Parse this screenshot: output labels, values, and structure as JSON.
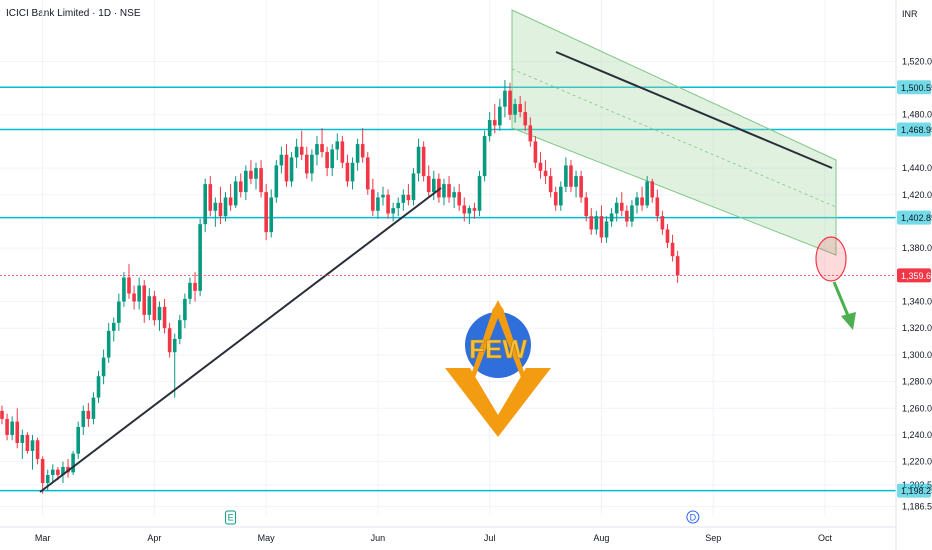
{
  "header": {
    "title": "ICICI Bank Limited · 1D · NSE",
    "currency": "INR"
  },
  "chart_data": {
    "type": "candlestick",
    "symbol": "ICICI Bank Limited",
    "interval": "1D",
    "exchange": "NSE",
    "currency": "INR",
    "ylim": [
      1180,
      1545
    ],
    "y_ticks": [
      "1,520.00",
      "1,480.00",
      "1,440.00",
      "1,420.00",
      "1,380.00",
      "1,340.00",
      "1,320.00",
      "1,300.00",
      "1,280.00",
      "1,260.00",
      "1,240.00",
      "1,220.00",
      "1,202.50",
      "1,186.50"
    ],
    "y_tick_values": [
      1520,
      1480,
      1440,
      1420,
      1380,
      1340,
      1320,
      1300,
      1280,
      1260,
      1240,
      1220,
      1202.5,
      1186.5
    ],
    "x_labels": [
      "Mar",
      "Apr",
      "May",
      "Jun",
      "Jul",
      "Aug",
      "Sep",
      "Oct"
    ],
    "x_label_index": [
      8,
      30,
      52,
      74,
      96,
      118,
      140,
      162
    ],
    "horizontal_levels": [
      {
        "value": 1500.55,
        "label": "1,500.55"
      },
      {
        "value": 1468.95,
        "label": "1,468.95"
      },
      {
        "value": 1402.85,
        "label": "1,402.85"
      },
      {
        "value": 1198.25,
        "label": "1,198.25"
      }
    ],
    "last_price": {
      "value": 1359.6,
      "label": "1,359.60"
    },
    "events": [
      {
        "index": 45,
        "label": "E",
        "color": "#089981"
      },
      {
        "index": 136,
        "label": "D",
        "color": "#2962ff"
      }
    ],
    "candles": [
      [
        1258,
        1262,
        1248,
        1252
      ],
      [
        1252,
        1256,
        1236,
        1240
      ],
      [
        1240,
        1254,
        1236,
        1250
      ],
      [
        1250,
        1260,
        1230,
        1234
      ],
      [
        1234,
        1244,
        1222,
        1240
      ],
      [
        1240,
        1242,
        1226,
        1228
      ],
      [
        1228,
        1240,
        1214,
        1236
      ],
      [
        1236,
        1238,
        1218,
        1222
      ],
      [
        1222,
        1224,
        1196,
        1204
      ],
      [
        1204,
        1214,
        1198,
        1210
      ],
      [
        1210,
        1218,
        1204,
        1214
      ],
      [
        1214,
        1216,
        1206,
        1210
      ],
      [
        1210,
        1220,
        1204,
        1216
      ],
      [
        1216,
        1222,
        1208,
        1212
      ],
      [
        1212,
        1228,
        1210,
        1226
      ],
      [
        1226,
        1250,
        1222,
        1246
      ],
      [
        1246,
        1262,
        1240,
        1258
      ],
      [
        1258,
        1264,
        1246,
        1252
      ],
      [
        1252,
        1272,
        1248,
        1268
      ],
      [
        1268,
        1288,
        1264,
        1284
      ],
      [
        1284,
        1304,
        1278,
        1298
      ],
      [
        1298,
        1324,
        1294,
        1318
      ],
      [
        1318,
        1328,
        1310,
        1324
      ],
      [
        1324,
        1346,
        1318,
        1340
      ],
      [
        1340,
        1362,
        1336,
        1358
      ],
      [
        1358,
        1368,
        1342,
        1346
      ],
      [
        1346,
        1352,
        1334,
        1340
      ],
      [
        1340,
        1358,
        1334,
        1352
      ],
      [
        1352,
        1356,
        1324,
        1330
      ],
      [
        1330,
        1350,
        1326,
        1344
      ],
      [
        1344,
        1348,
        1322,
        1326
      ],
      [
        1326,
        1340,
        1318,
        1336
      ],
      [
        1336,
        1342,
        1316,
        1320
      ],
      [
        1320,
        1324,
        1298,
        1302
      ],
      [
        1302,
        1316,
        1268,
        1312
      ],
      [
        1312,
        1330,
        1308,
        1326
      ],
      [
        1326,
        1346,
        1320,
        1342
      ],
      [
        1342,
        1358,
        1338,
        1354
      ],
      [
        1354,
        1362,
        1340,
        1348
      ],
      [
        1348,
        1402,
        1344,
        1398
      ],
      [
        1398,
        1432,
        1392,
        1428
      ],
      [
        1428,
        1434,
        1404,
        1408
      ],
      [
        1408,
        1418,
        1396,
        1414
      ],
      [
        1414,
        1426,
        1398,
        1404
      ],
      [
        1404,
        1422,
        1400,
        1418
      ],
      [
        1418,
        1428,
        1408,
        1412
      ],
      [
        1412,
        1434,
        1410,
        1430
      ],
      [
        1430,
        1436,
        1418,
        1422
      ],
      [
        1422,
        1442,
        1416,
        1438
      ],
      [
        1438,
        1446,
        1428,
        1432
      ],
      [
        1432,
        1444,
        1424,
        1440
      ],
      [
        1440,
        1446,
        1418,
        1422
      ],
      [
        1422,
        1428,
        1386,
        1392
      ],
      [
        1392,
        1424,
        1388,
        1418
      ],
      [
        1418,
        1446,
        1414,
        1442
      ],
      [
        1442,
        1456,
        1436,
        1450
      ],
      [
        1450,
        1458,
        1426,
        1430
      ],
      [
        1430,
        1452,
        1426,
        1448
      ],
      [
        1448,
        1462,
        1440,
        1456
      ],
      [
        1456,
        1468,
        1446,
        1450
      ],
      [
        1450,
        1456,
        1432,
        1436
      ],
      [
        1436,
        1454,
        1430,
        1450
      ],
      [
        1450,
        1464,
        1442,
        1458
      ],
      [
        1458,
        1470,
        1448,
        1452
      ],
      [
        1452,
        1456,
        1434,
        1440
      ],
      [
        1440,
        1458,
        1434,
        1454
      ],
      [
        1454,
        1466,
        1446,
        1460
      ],
      [
        1460,
        1464,
        1440,
        1444
      ],
      [
        1444,
        1450,
        1426,
        1430
      ],
      [
        1430,
        1448,
        1424,
        1444
      ],
      [
        1444,
        1462,
        1438,
        1458
      ],
      [
        1458,
        1470,
        1444,
        1448
      ],
      [
        1448,
        1452,
        1420,
        1424
      ],
      [
        1424,
        1432,
        1404,
        1408
      ],
      [
        1408,
        1422,
        1402,
        1418
      ],
      [
        1418,
        1426,
        1412,
        1420
      ],
      [
        1420,
        1424,
        1402,
        1406
      ],
      [
        1406,
        1414,
        1400,
        1410
      ],
      [
        1410,
        1418,
        1404,
        1414
      ],
      [
        1414,
        1424,
        1408,
        1420
      ],
      [
        1420,
        1428,
        1412,
        1416
      ],
      [
        1416,
        1440,
        1412,
        1436
      ],
      [
        1436,
        1462,
        1430,
        1456
      ],
      [
        1456,
        1460,
        1430,
        1434
      ],
      [
        1434,
        1442,
        1418,
        1422
      ],
      [
        1422,
        1438,
        1416,
        1432
      ],
      [
        1432,
        1436,
        1414,
        1418
      ],
      [
        1418,
        1432,
        1412,
        1428
      ],
      [
        1428,
        1434,
        1414,
        1418
      ],
      [
        1418,
        1426,
        1410,
        1422
      ],
      [
        1422,
        1428,
        1408,
        1412
      ],
      [
        1412,
        1418,
        1400,
        1406
      ],
      [
        1406,
        1412,
        1398,
        1410
      ],
      [
        1410,
        1414,
        1402,
        1408
      ],
      [
        1408,
        1438,
        1404,
        1434
      ],
      [
        1434,
        1468,
        1430,
        1464
      ],
      [
        1464,
        1482,
        1460,
        1476
      ],
      [
        1476,
        1488,
        1466,
        1472
      ],
      [
        1472,
        1492,
        1468,
        1486
      ],
      [
        1486,
        1506,
        1478,
        1498
      ],
      [
        1498,
        1504,
        1476,
        1480
      ],
      [
        1480,
        1492,
        1474,
        1488
      ],
      [
        1488,
        1494,
        1478,
        1482
      ],
      [
        1482,
        1490,
        1468,
        1472
      ],
      [
        1472,
        1478,
        1456,
        1460
      ],
      [
        1460,
        1464,
        1440,
        1444
      ],
      [
        1444,
        1452,
        1432,
        1438
      ],
      [
        1438,
        1446,
        1428,
        1434
      ],
      [
        1434,
        1440,
        1418,
        1422
      ],
      [
        1422,
        1426,
        1408,
        1412
      ],
      [
        1412,
        1430,
        1408,
        1426
      ],
      [
        1426,
        1448,
        1422,
        1442
      ],
      [
        1442,
        1446,
        1422,
        1426
      ],
      [
        1426,
        1438,
        1418,
        1434
      ],
      [
        1434,
        1438,
        1414,
        1418
      ],
      [
        1418,
        1422,
        1400,
        1404
      ],
      [
        1404,
        1410,
        1390,
        1394
      ],
      [
        1394,
        1408,
        1390,
        1404
      ],
      [
        1404,
        1412,
        1384,
        1388
      ],
      [
        1388,
        1404,
        1384,
        1400
      ],
      [
        1400,
        1410,
        1396,
        1406
      ],
      [
        1406,
        1418,
        1400,
        1414
      ],
      [
        1414,
        1422,
        1404,
        1408
      ],
      [
        1408,
        1412,
        1396,
        1400
      ],
      [
        1400,
        1416,
        1396,
        1412
      ],
      [
        1412,
        1422,
        1406,
        1418
      ],
      [
        1418,
        1426,
        1408,
        1412
      ],
      [
        1412,
        1434,
        1410,
        1430
      ],
      [
        1430,
        1432,
        1414,
        1418
      ],
      [
        1418,
        1424,
        1400,
        1404
      ],
      [
        1404,
        1408,
        1390,
        1394
      ],
      [
        1394,
        1398,
        1380,
        1384
      ],
      [
        1384,
        1390,
        1370,
        1374
      ],
      [
        1374,
        1378,
        1354,
        1359.6
      ]
    ]
  }
}
